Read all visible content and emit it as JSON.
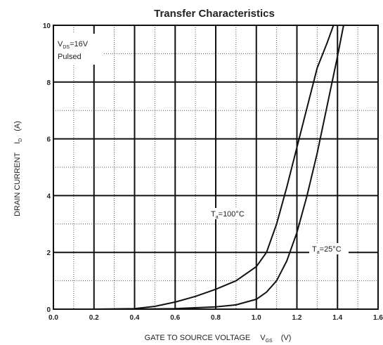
{
  "chart_data": {
    "type": "line",
    "title": "Transfer Characteristics",
    "xlabel": "GATE TO SOURCE VOLTAGE",
    "xlabel_symbol": "V",
    "xlabel_symbol_sub": "GS",
    "xlabel_unit": "(V)",
    "ylabel": "DRAIN CURRENT",
    "ylabel_symbol": "I",
    "ylabel_symbol_sub": "D",
    "ylabel_unit": "(A)",
    "xlim": [
      0,
      1.6
    ],
    "ylim": [
      0,
      10
    ],
    "x_ticks": [
      "0.0",
      "0.2",
      "0.4",
      "0.6",
      "0.8",
      "1.0",
      "1.2",
      "1.4",
      "1.6"
    ],
    "y_ticks": [
      "0",
      "2",
      "4",
      "6",
      "8",
      "10"
    ],
    "grid": true,
    "annotation": {
      "line1_prefix": "V",
      "line1_sub": "DS",
      "line1_value": "=16V",
      "line2": "Pulsed"
    },
    "series": [
      {
        "name": "Ta=100°C",
        "label_prefix": "T",
        "label_sub": "a",
        "label_value": "=100°C",
        "points": [
          [
            0.0,
            0.0
          ],
          [
            0.2,
            0.0
          ],
          [
            0.4,
            0.02
          ],
          [
            0.5,
            0.1
          ],
          [
            0.6,
            0.25
          ],
          [
            0.7,
            0.45
          ],
          [
            0.8,
            0.7
          ],
          [
            0.9,
            1.0
          ],
          [
            1.0,
            1.5
          ],
          [
            1.05,
            2.0
          ],
          [
            1.1,
            3.0
          ],
          [
            1.15,
            4.3
          ],
          [
            1.2,
            5.7
          ],
          [
            1.25,
            7.1
          ],
          [
            1.3,
            8.5
          ],
          [
            1.35,
            9.4
          ],
          [
            1.38,
            10.0
          ]
        ]
      },
      {
        "name": "Ta=25°C",
        "label_prefix": "T",
        "label_sub": "a",
        "label_value": "=25°C",
        "points": [
          [
            0.0,
            0.0
          ],
          [
            0.4,
            0.0
          ],
          [
            0.6,
            0.02
          ],
          [
            0.8,
            0.08
          ],
          [
            0.9,
            0.15
          ],
          [
            1.0,
            0.35
          ],
          [
            1.05,
            0.6
          ],
          [
            1.1,
            1.0
          ],
          [
            1.15,
            1.7
          ],
          [
            1.2,
            2.7
          ],
          [
            1.25,
            4.0
          ],
          [
            1.3,
            5.5
          ],
          [
            1.35,
            7.2
          ],
          [
            1.4,
            8.9
          ],
          [
            1.43,
            10.0
          ]
        ]
      }
    ]
  }
}
